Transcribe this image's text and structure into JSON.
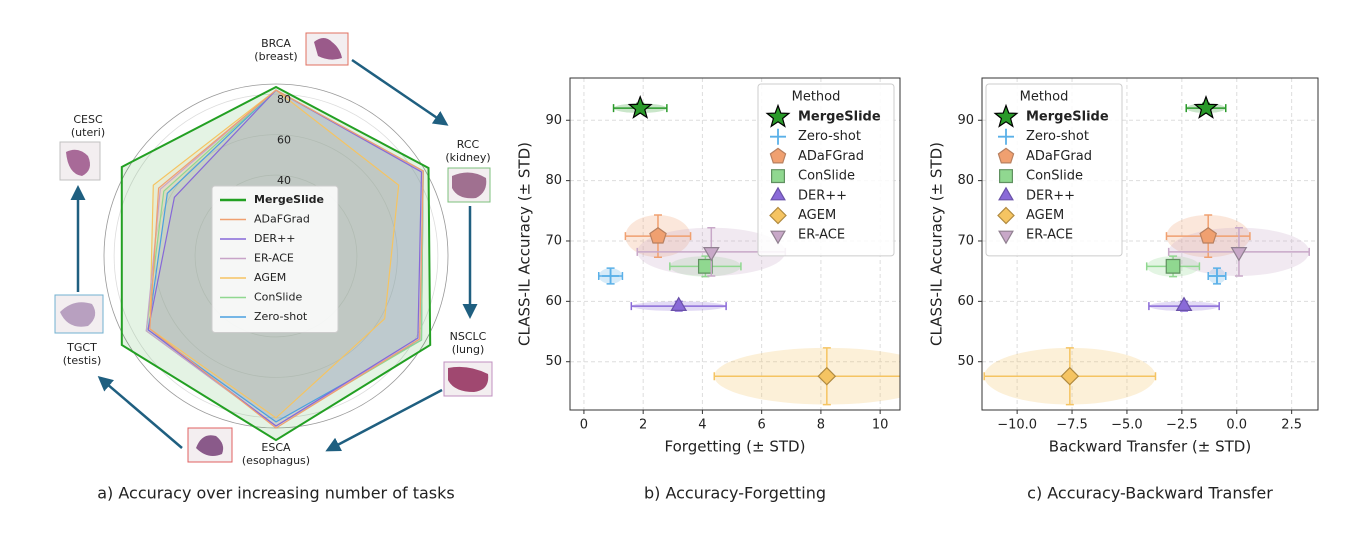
{
  "chart_data": [
    {
      "type": "radar",
      "caption": "a) Accuracy over increasing number of tasks",
      "categories": [
        "BRCA",
        "RCC",
        "NSCLC",
        "ESCA",
        "TGCT",
        "CESC"
      ],
      "category_sublabels": [
        "(breast)",
        "(kidney)",
        "(lung)",
        "(esophagus)",
        "(testis)",
        "(uteri)"
      ],
      "rlim": [
        0,
        85
      ],
      "rticks": [
        40,
        60,
        80
      ],
      "grid": true,
      "legend": "center",
      "series": [
        {
          "name": "MergeSlide",
          "color": "#23a023",
          "values": [
            83.5,
            87,
            88,
            91,
            88,
            88
          ]
        },
        {
          "name": "ADaFGrad",
          "color": "#f0a070",
          "values": [
            82,
            84,
            82,
            85,
            72,
            67
          ]
        },
        {
          "name": "DER++",
          "color": "#8668d8",
          "values": [
            82,
            83,
            81,
            84,
            73,
            58
          ]
        },
        {
          "name": "ER-ACE",
          "color": "#c8a4c8",
          "values": [
            82,
            84,
            82,
            84,
            74,
            66
          ]
        },
        {
          "name": "AGEM",
          "color": "#f5c462",
          "values": [
            82,
            70,
            62,
            80,
            72,
            70
          ]
        },
        {
          "name": "ConSlide",
          "color": "#90d890",
          "values": [
            82,
            84,
            83,
            84,
            74,
            64
          ]
        },
        {
          "name": "Zero-shot",
          "color": "#4aa0e0",
          "values": [
            82,
            84,
            83,
            82,
            73,
            62
          ]
        }
      ]
    },
    {
      "type": "scatter",
      "caption": "b) Accuracy-Forgetting",
      "x_label": "Forgetting (± STD)",
      "y_label": "CLASS-IL Accuracy (± STD)",
      "legend_title": "Method",
      "legend": "upper right",
      "grid": true,
      "xlim": [
        -0.47,
        10.67
      ],
      "xticks": [
        0,
        2,
        4,
        6,
        8,
        10
      ],
      "ylim": [
        42,
        97
      ],
      "yticks": [
        50,
        60,
        70,
        80,
        90
      ],
      "series": [
        {
          "name": "MergeSlide",
          "marker": "star",
          "color": "#2a9a2a",
          "edgecolor": "#000000",
          "x": [
            1.9
          ],
          "xerr": [
            0.9
          ],
          "values": [
            92
          ],
          "yerr": [
            0.8
          ]
        },
        {
          "name": "Zero-shot",
          "marker": "plus",
          "color": "#5ab0e8",
          "edgecolor": "#5ab0e8",
          "x": [
            0.9
          ],
          "xerr": [
            0.4
          ],
          "values": [
            64.2
          ],
          "yerr": [
            1.3
          ]
        },
        {
          "name": "ADaFGrad",
          "marker": "pentagon",
          "color": "#f0a070",
          "edgecolor": "#b88060",
          "x": [
            2.5
          ],
          "xerr": [
            1.1
          ],
          "values": [
            70.8
          ],
          "yerr": [
            3.5
          ]
        },
        {
          "name": "ConSlide",
          "marker": "square",
          "color": "#90d890",
          "edgecolor": "#609060",
          "x": [
            4.1
          ],
          "xerr": [
            1.2
          ],
          "values": [
            65.8
          ],
          "yerr": [
            1.7
          ]
        },
        {
          "name": "DER++",
          "marker": "triangle-up",
          "color": "#8a6ad8",
          "edgecolor": "#6a52a8",
          "x": [
            3.2
          ],
          "xerr": [
            1.6
          ],
          "values": [
            59.2
          ],
          "yerr": [
            0.8
          ]
        },
        {
          "name": "AGEM",
          "marker": "diamond",
          "color": "#f5c462",
          "edgecolor": "#b08a40",
          "x": [
            8.2
          ],
          "xerr": [
            3.8
          ],
          "values": [
            47.6
          ],
          "yerr": [
            4.7
          ]
        },
        {
          "name": "ER-ACE",
          "marker": "triangle-down",
          "color": "#c8a8c8",
          "edgecolor": "#908090",
          "x": [
            4.3
          ],
          "xerr": [
            2.5
          ],
          "values": [
            68.2
          ],
          "yerr": [
            4.0
          ]
        }
      ]
    },
    {
      "type": "scatter",
      "caption": "c) Accuracy-Backward Transfer",
      "x_label": "Backward Transfer (± STD)",
      "y_label": "CLASS-IL Accuracy (± STD)",
      "legend_title": "Method",
      "legend": "upper left",
      "grid": true,
      "xlim": [
        -11.6,
        3.7
      ],
      "xticks": [
        {
          "value": -10,
          "label": "−10.0"
        },
        {
          "value": -7.5,
          "label": "−7.5"
        },
        {
          "value": -5,
          "label": "−5.0"
        },
        {
          "value": -2.5,
          "label": "−2.5"
        },
        {
          "value": 0,
          "label": "0.0"
        },
        2.5
      ],
      "ylim": [
        42,
        97
      ],
      "yticks": [
        50,
        60,
        70,
        80,
        90
      ],
      "series": [
        {
          "name": "MergeSlide",
          "marker": "star",
          "color": "#2a9a2a",
          "edgecolor": "#000000",
          "x": [
            -1.4
          ],
          "xerr": [
            0.9
          ],
          "values": [
            92
          ],
          "yerr": [
            0.8
          ]
        },
        {
          "name": "Zero-shot",
          "marker": "plus",
          "color": "#5ab0e8",
          "edgecolor": "#5ab0e8",
          "x": [
            -0.9
          ],
          "xerr": [
            0.4
          ],
          "values": [
            64.2
          ],
          "yerr": [
            1.3
          ]
        },
        {
          "name": "ADaFGrad",
          "marker": "pentagon",
          "color": "#f0a070",
          "edgecolor": "#b88060",
          "x": [
            -1.3
          ],
          "xerr": [
            1.9
          ],
          "values": [
            70.8
          ],
          "yerr": [
            3.5
          ]
        },
        {
          "name": "ConSlide",
          "marker": "square",
          "color": "#90d890",
          "edgecolor": "#609060",
          "x": [
            -2.9
          ],
          "xerr": [
            1.2
          ],
          "values": [
            65.8
          ],
          "yerr": [
            1.7
          ]
        },
        {
          "name": "DER++",
          "marker": "triangle-up",
          "color": "#8a6ad8",
          "edgecolor": "#6a52a8",
          "x": [
            -2.4
          ],
          "xerr": [
            1.6
          ],
          "values": [
            59.2
          ],
          "yerr": [
            0.8
          ]
        },
        {
          "name": "AGEM",
          "marker": "diamond",
          "color": "#f5c462",
          "edgecolor": "#b08a40",
          "x": [
            -7.6
          ],
          "xerr": [
            3.9
          ],
          "values": [
            47.6
          ],
          "yerr": [
            4.7
          ]
        },
        {
          "name": "ER-ACE",
          "marker": "triangle-down",
          "color": "#c8a8c8",
          "edgecolor": "#908090",
          "x": [
            0.1
          ],
          "xerr": [
            3.2
          ],
          "values": [
            68.2
          ],
          "yerr": [
            4.0
          ]
        }
      ]
    }
  ]
}
